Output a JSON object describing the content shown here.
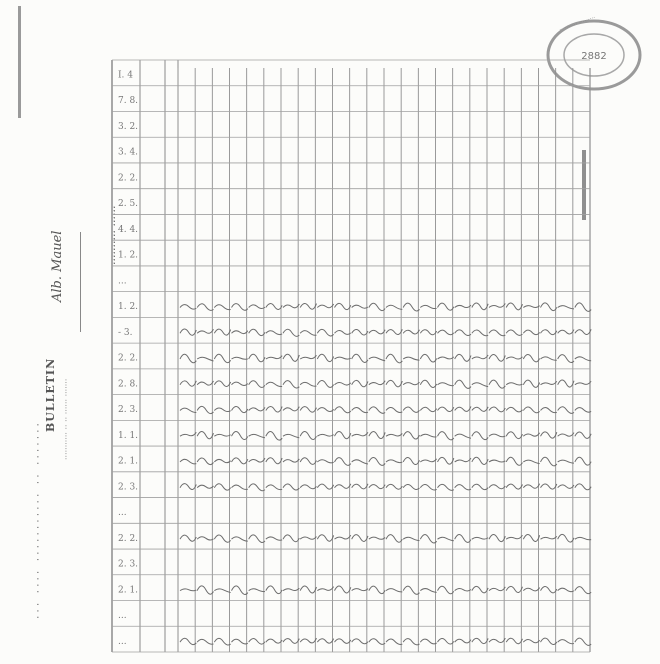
{
  "document": {
    "vertical_heading": "··· ···· ··········· ·· ·······",
    "title": "BULLETIN",
    "subtitle": "··········· ·· ·· ······ ·······",
    "handwritten_name": "Alb. Mauel",
    "handwritten_note": "·········· ······"
  },
  "stamp": {
    "number": "2882",
    "ring_text": "·· ······· ·········"
  },
  "table": {
    "row_headers": [
      "I. 4",
      "7. 8.",
      "3. 2.",
      "3. 4.",
      "2. 2.",
      "2. 5.",
      "4. 4.",
      "1. 2.",
      "...",
      "1. 2.",
      "- 3.",
      "2. 2.",
      "2. 8.",
      "2. 3.",
      "1. 1.",
      "2. 1.",
      "2. 3.",
      "...",
      "2. 2.",
      "2. 3.",
      "2. 1.",
      "...",
      "..."
    ],
    "filled_row_count": 10
  }
}
